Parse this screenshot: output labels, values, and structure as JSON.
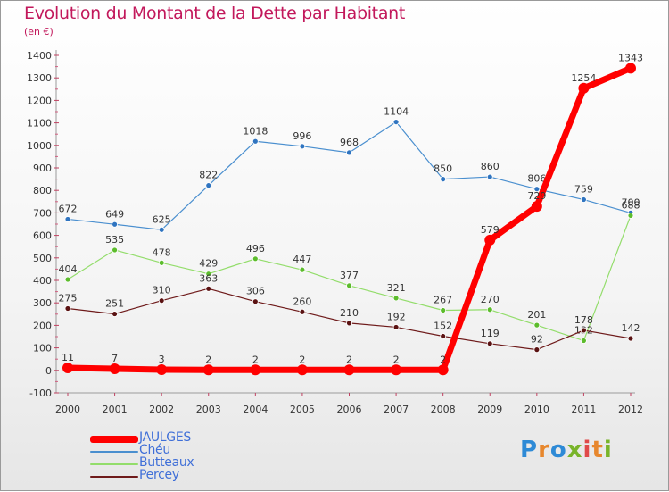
{
  "title": "Evolution du Montant de la Dette par Habitant",
  "subtitle": "(en €)",
  "logo": {
    "text": "Proxiti",
    "letter_colors": [
      "#2e8ad6",
      "#e7872d",
      "#2e8ad6",
      "#79b42a",
      "#e04a4a",
      "#e7872d",
      "#79b42a"
    ]
  },
  "chart_data": {
    "type": "line",
    "x": [
      "2000",
      "2001",
      "2002",
      "2003",
      "2004",
      "2005",
      "2006",
      "2007",
      "2008",
      "2009",
      "2010",
      "2011",
      "2012"
    ],
    "ylim": [
      -100,
      1400
    ],
    "yticks": [
      -100,
      0,
      100,
      200,
      300,
      400,
      500,
      600,
      700,
      800,
      900,
      1000,
      1100,
      1200,
      1300,
      1400
    ],
    "grid": false,
    "legend_position": "bottom-left",
    "series": [
      {
        "name": "Chéu",
        "color": "#4a8fcf",
        "marker": "#2f74c0",
        "width": 1.2,
        "values": [
          672,
          649,
          625,
          822,
          1018,
          996,
          968,
          1104,
          850,
          860,
          806,
          759,
          700
        ]
      },
      {
        "name": "Butteaux",
        "color": "#93dd6b",
        "marker": "#5cbc2c",
        "width": 1.2,
        "values": [
          404,
          535,
          478,
          429,
          496,
          447,
          377,
          321,
          267,
          270,
          201,
          132,
          688
        ]
      },
      {
        "name": "Percey",
        "color": "#6e1a1a",
        "marker": "#5a1212",
        "width": 1.2,
        "values": [
          275,
          251,
          310,
          363,
          306,
          260,
          210,
          192,
          152,
          119,
          92,
          178,
          142
        ]
      },
      {
        "name": "JAULGES",
        "color": "#ff0000",
        "marker": "#ff0000",
        "width": 7,
        "values": [
          11,
          7,
          3,
          2,
          2,
          2,
          2,
          2,
          2,
          579,
          729,
          1254,
          1343
        ]
      }
    ]
  },
  "legend": [
    {
      "label": "JAULGES",
      "color": "#ff0000",
      "thickness": 8
    },
    {
      "label": "Chéu",
      "color": "#4a8fcf",
      "thickness": 2
    },
    {
      "label": "Butteaux",
      "color": "#93dd6b",
      "thickness": 2
    },
    {
      "label": "Percey",
      "color": "#6e1a1a",
      "thickness": 2
    }
  ]
}
